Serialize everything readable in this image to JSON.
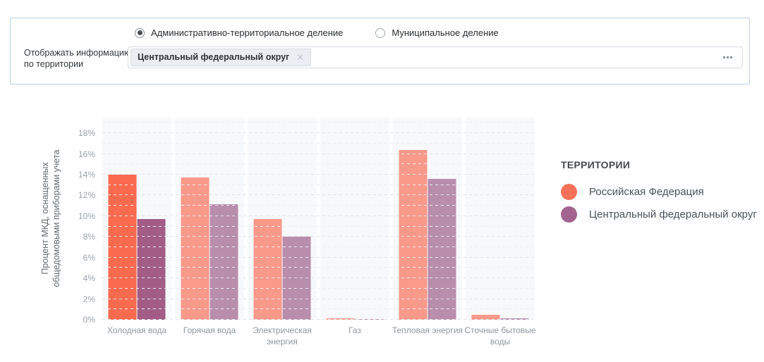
{
  "panel": {
    "radio_options": [
      {
        "label": "Административно-территориальное деление",
        "selected": true
      },
      {
        "label": "Муниципальное деление",
        "selected": false
      }
    ],
    "territory_label_line1": "Отображать информацию",
    "territory_label_line2": "по территории",
    "chip": {
      "text": "Центральный федеральный округ",
      "close_icon": "✕"
    }
  },
  "chart_data": {
    "type": "bar",
    "title": "",
    "ylabel_line1": "Процент МКД, оснащенных",
    "ylabel_line2": "общедомовыми приборами учета",
    "categories": [
      "Холодная вода",
      "Горячая вода",
      "Электрическая энергия",
      "Газ",
      "Тепловая энергия",
      "Сточные бытовые воды"
    ],
    "series": [
      {
        "name": "Российская Федерация",
        "values": [
          14.0,
          13.7,
          9.7,
          0.15,
          16.35,
          0.45
        ],
        "color_normal": "#f9998a",
        "color_highlight": "#fa6a4e",
        "legend_color": "#f7705a"
      },
      {
        "name": "Центральный федеральный округ",
        "values": [
          9.75,
          11.15,
          8.0,
          0.1,
          13.6,
          0.15
        ],
        "color_normal": "#b98dac",
        "color_highlight": "#a35c86",
        "legend_color": "#a2638e"
      }
    ],
    "highlighted_category_index": 0,
    "highlighted_category": "Холодная вода",
    "y_ticks": [
      "0%",
      "2%",
      "4%",
      "6%",
      "8%",
      "10%",
      "12%",
      "14%",
      "16%",
      "18%"
    ],
    "ylim": [
      0,
      19.5
    ],
    "grid": "dashed horizontal lines every 1%",
    "legend_title": "ТЕРРИТОРИИ",
    "legend_position": "right"
  }
}
